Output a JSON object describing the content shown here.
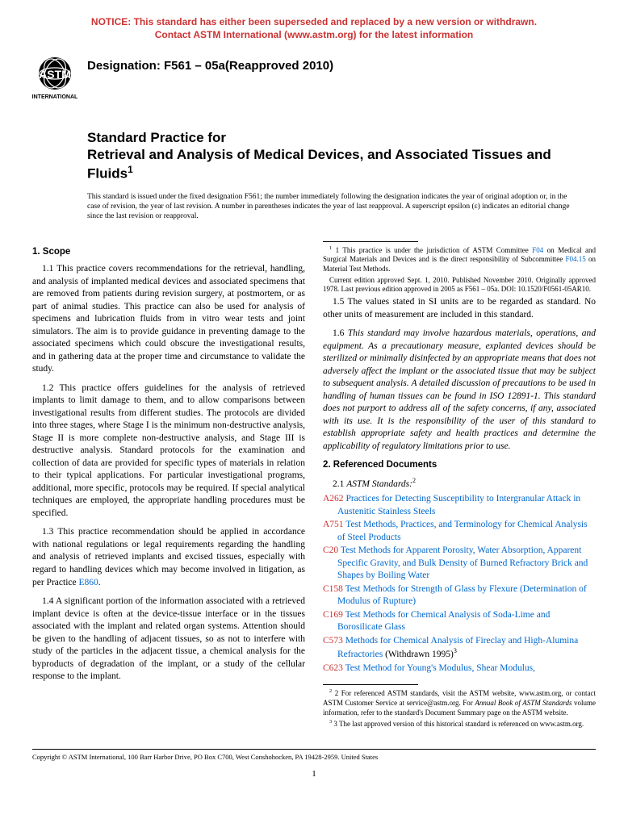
{
  "notice": {
    "line1": "NOTICE: This standard has either been superseded and replaced by a new version or withdrawn.",
    "line2": "Contact ASTM International (www.astm.org) for the latest information",
    "color": "#cc3333"
  },
  "logo": {
    "top_text": "ASTM",
    "bottom_text": "INTERNATIONAL"
  },
  "designation": "Designation: F561 – 05a(Reapproved 2010)",
  "title": {
    "prefix": "Standard Practice for",
    "main": "Retrieval and Analysis of Medical Devices, and Associated Tissues and Fluids",
    "sup": "1"
  },
  "issuance": "This standard is issued under the fixed designation F561; the number immediately following the designation indicates the year of original adoption or, in the case of revision, the year of last revision. A number in parentheses indicates the year of last reapproval. A superscript epsilon (ε) indicates an editorial change since the last revision or reapproval.",
  "scope": {
    "heading": "1. Scope",
    "p11": "1.1 This practice covers recommendations for the retrieval, handling, and analysis of implanted medical devices and associated specimens that are removed from patients during revision surgery, at postmortem, or as part of animal studies. This practice can also be used for analysis of specimens and lubrication fluids from in vitro wear tests and joint simulators. The aim is to provide guidance in preventing damage to the associated specimens which could obscure the investigational results, and in gathering data at the proper time and circumstance to validate the study.",
    "p12": "1.2 This practice offers guidelines for the analysis of retrieved implants to limit damage to them, and to allow comparisons between investigational results from different studies. The protocols are divided into three stages, where Stage I is the minimum non-destructive analysis, Stage II is more complete non-destructive analysis, and Stage III is destructive analysis. Standard protocols for the examination and collection of data are provided for specific types of materials in relation to their typical applications. For particular investigational programs, additional, more specific, protocols may be required. If special analytical techniques are employed, the appropriate handling procedures must be specified.",
    "p13_a": "1.3 This practice recommendation should be applied in accordance with national regulations or legal requirements regarding the handling and analysis of retrieved implants and excised tissues, especially with regard to handling devices which may become involved in litigation, as per Practice ",
    "p13_link": "E860",
    "p13_b": ".",
    "p14": "1.4 A significant portion of the information associated with a retrieved implant device is often at the device-tissue interface or in the tissues associated with the implant and related organ systems. Attention should be given to the handling of adjacent tissues, so as not to interfere with study of the particles in the adjacent tissue, a chemical analysis for the byproducts of degradation of the implant, or a study of the cellular response to the implant.",
    "p15": "1.5 The values stated in SI units are to be regarded as standard. No other units of measurement are included in this standard.",
    "p16": "1.6 This standard may involve hazardous materials, operations, and equipment. As a precautionary measure, explanted devices should be sterilized or minimally disinfected by an appropriate means that does not adversely affect the implant or the associated tissue that may be subject to subsequent analysis. A detailed discussion of precautions to be used in handling of human tissues can be found in ISO 12891-1. This standard does not purport to address all of the safety concerns, if any, associated with its use. It is the responsibility of the user of this standard to establish appropriate safety and health practices and determine the applicability of regulatory limitations prior to use."
  },
  "refdocs": {
    "heading": "2. Referenced Documents",
    "subheading_a": "2.1 ",
    "subheading_b": "ASTM Standards:",
    "sup": "2",
    "items": [
      {
        "code": "A262",
        "title": "Practices for Detecting Susceptibility to Intergranular Attack in Austenitic Stainless Steels"
      },
      {
        "code": "A751",
        "title": "Test Methods, Practices, and Terminology for Chemical Analysis of Steel Products"
      },
      {
        "code": "C20",
        "title": "Test Methods for Apparent Porosity, Water Absorption, Apparent Specific Gravity, and Bulk Density of Burned Refractory Brick and Shapes by Boiling Water"
      },
      {
        "code": "C158",
        "title": "Test Methods for Strength of Glass by Flexure (Determination of Modulus of Rupture)"
      },
      {
        "code": "C169",
        "title": "Test Methods for Chemical Analysis of Soda-Lime and Borosilicate Glass"
      },
      {
        "code": "C573",
        "title": "Methods for Chemical Analysis of Fireclay and High-Alumina Refractories",
        "suffix": " (Withdrawn 1995)",
        "sup": "3"
      },
      {
        "code": "C623",
        "title": "Test Method for Young's Modulus, Shear Modulus,"
      }
    ]
  },
  "footnotes_left": {
    "f1_a": "1 This practice is under the jurisdiction of ASTM Committee ",
    "f1_link1": "F04",
    "f1_b": " on Medical and Surgical Materials and Devices and is the direct responsibility of Subcommittee ",
    "f1_link2": "F04.15",
    "f1_c": " on Material Test Methods.",
    "f1_d": "Current edition approved Sept. 1, 2010. Published November 2010. Originally approved 1978. Last previous edition approved in 2005 as F561 – 05a. DOI: 10.1520/F0561-05AR10."
  },
  "footnotes_right": {
    "f2_a": "2 For referenced ASTM standards, visit the ASTM website, www.astm.org, or contact ASTM Customer Service at service@astm.org. For ",
    "f2_i": "Annual Book of ASTM Standards",
    "f2_b": " volume information, refer to the standard's Document Summary page on the ASTM website.",
    "f3": "3 The last approved version of this historical standard is referenced on www.astm.org."
  },
  "copyright": "Copyright © ASTM International, 100 Barr Harbor Drive, PO Box C700, West Conshohocken, PA 19428-2959. United States",
  "page_number": "1",
  "colors": {
    "notice": "#cc3333",
    "link": "#0066cc",
    "ref_code": "#cc3333"
  }
}
